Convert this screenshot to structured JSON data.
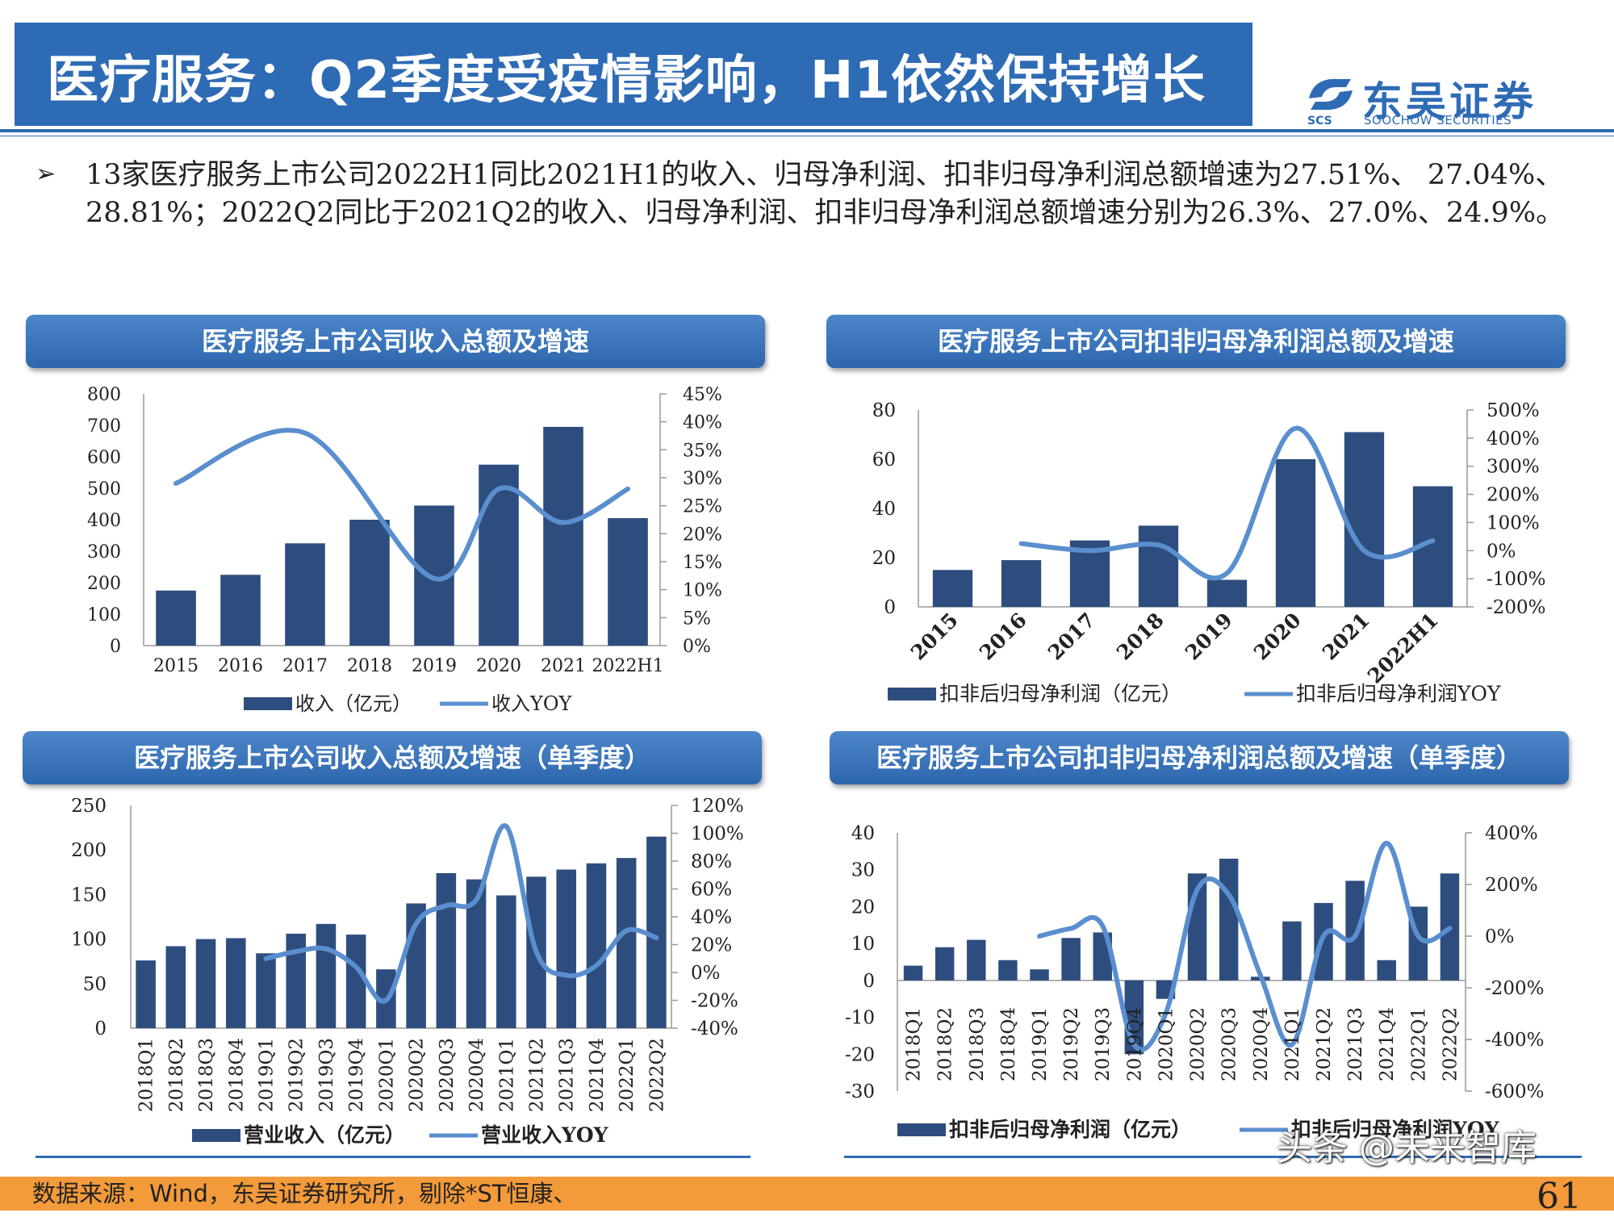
{
  "header": {
    "title": "医疗服务：Q2季度受疫情影响，H1依然保持增长",
    "logo_name": "东吴证券",
    "logo_sub": "SOOCHOW SECURITIES",
    "logo_abbr": "SCS"
  },
  "bullet": {
    "text": "13家医疗服务上市公司2022H1同比2021H1的收入、归母净利润、扣非归母净利润总额增速为27.51%、 27.04%、28.81%；2022Q2同比于2021Q2的收入、归母净利润、扣非归母净利润总额增速分别为26.3%、27.0%、24.9%。"
  },
  "colors": {
    "bar": "#2e4d7f",
    "line": "#5a8fcf",
    "title_bg": "#2e6bb5",
    "footer": "#f39a3a"
  },
  "chart_data": [
    {
      "type": "bar",
      "title": "医疗服务上市公司收入总额及增速",
      "categories": [
        "2015",
        "2016",
        "2017",
        "2018",
        "2019",
        "2020",
        "2021",
        "2022H1"
      ],
      "series": [
        {
          "name": "收入（亿元）",
          "type": "bar",
          "axis": "left",
          "values": [
            175,
            225,
            325,
            400,
            445,
            575,
            695,
            405
          ]
        },
        {
          "name": "收入YOY",
          "type": "line",
          "axis": "right",
          "values": [
            29,
            null,
            38,
            null,
            12,
            28,
            22,
            28
          ]
        }
      ],
      "y_left": {
        "min": 0,
        "max": 800,
        "ticks": [
          "0",
          "100",
          "200",
          "300",
          "400",
          "500",
          "600",
          "700",
          "800"
        ]
      },
      "y_right": {
        "min": 0,
        "max": 45,
        "ticks": [
          "0%",
          "5%",
          "10%",
          "15%",
          "20%",
          "25%",
          "30%",
          "35%",
          "40%",
          "45%"
        ]
      }
    },
    {
      "type": "bar",
      "title": "医疗服务上市公司扣非归母净利润总额及增速",
      "categories": [
        "2015",
        "2016",
        "2017",
        "2018",
        "2019",
        "2020",
        "2021",
        "2022H1"
      ],
      "series": [
        {
          "name": "扣非后归母净利润（亿元）",
          "type": "bar",
          "axis": "left",
          "values": [
            15,
            19,
            27,
            33,
            11,
            60,
            71,
            49
          ]
        },
        {
          "name": "扣非后归母净利润YOY",
          "type": "line",
          "axis": "right",
          "values": [
            null,
            25,
            0,
            20,
            -80,
            435,
            0,
            35
          ]
        }
      ],
      "y_left": {
        "min": 0,
        "max": 80,
        "ticks": [
          "0",
          "20",
          "40",
          "60",
          "80"
        ]
      },
      "y_right": {
        "min": -200,
        "max": 500,
        "ticks": [
          "-200%",
          "-100%",
          "0%",
          "100%",
          "200%",
          "300%",
          "400%",
          "500%"
        ]
      }
    },
    {
      "type": "bar",
      "title": "医疗服务上市公司收入总额及增速（单季度）",
      "categories": [
        "2018Q1",
        "2018Q2",
        "2018Q3",
        "2018Q4",
        "2019Q1",
        "2019Q2",
        "2019Q3",
        "2019Q4",
        "2020Q1",
        "2020Q2",
        "2020Q3",
        "2020Q4",
        "2021Q1",
        "2021Q2",
        "2021Q3",
        "2021Q4",
        "2022Q1",
        "2022Q2"
      ],
      "series": [
        {
          "name": "营业收入（亿元）",
          "type": "bar",
          "axis": "left",
          "values": [
            76,
            92,
            100,
            101,
            84,
            106,
            117,
            105,
            66,
            140,
            174,
            167,
            149,
            170,
            178,
            185,
            191,
            215
          ]
        },
        {
          "name": "营业收入YOY",
          "type": "line",
          "axis": "right",
          "values": [
            null,
            null,
            null,
            null,
            10,
            15,
            17,
            4,
            -20,
            35,
            48,
            52,
            105,
            15,
            -2,
            5,
            30,
            25
          ]
        }
      ],
      "y_left": {
        "min": 0,
        "max": 250,
        "ticks": [
          "0",
          "50",
          "100",
          "150",
          "200",
          "250"
        ]
      },
      "y_right": {
        "min": -40,
        "max": 120,
        "ticks": [
          "-40%",
          "-20%",
          "0%",
          "20%",
          "40%",
          "60%",
          "80%",
          "100%",
          "120%"
        ]
      }
    },
    {
      "type": "bar",
      "title": "医疗服务上市公司扣非归母净利润总额及增速（单季度）",
      "categories": [
        "2018Q1",
        "2018Q2",
        "2018Q3",
        "2018Q4",
        "2019Q1",
        "2019Q2",
        "2019Q3",
        "2019Q4",
        "2020Q1",
        "2020Q2",
        "2020Q3",
        "2020Q4",
        "2021Q1",
        "2021Q2",
        "2021Q3",
        "2021Q4",
        "2022Q1",
        "2022Q2"
      ],
      "series": [
        {
          "name": "扣非后归母净利润（亿元）",
          "type": "bar",
          "axis": "left",
          "values": [
            4,
            9,
            11,
            5.5,
            3,
            11.5,
            13,
            -20,
            -5,
            29,
            33,
            1,
            16,
            21,
            27,
            5.5,
            20,
            29
          ]
        },
        {
          "name": "扣非后归母净利润YOY",
          "type": "line",
          "axis": "right",
          "values": [
            null,
            null,
            null,
            null,
            0,
            30,
            40,
            -420,
            -300,
            180,
            160,
            -150,
            -420,
            0,
            0,
            360,
            0,
            30
          ]
        }
      ],
      "y_left": {
        "min": -30,
        "max": 40,
        "ticks": [
          "-30",
          "-20",
          "-10",
          "0",
          "10",
          "20",
          "30",
          "40"
        ]
      },
      "y_right": {
        "min": -600,
        "max": 400,
        "ticks": [
          "-600%",
          "-400%",
          "-200%",
          "0%",
          "200%",
          "400%"
        ]
      }
    }
  ],
  "footer": {
    "source": "数据来源：Wind，东吴证券研究所，剔除*ST恒康、",
    "page": "61",
    "watermark": "头条 @未来智库"
  }
}
